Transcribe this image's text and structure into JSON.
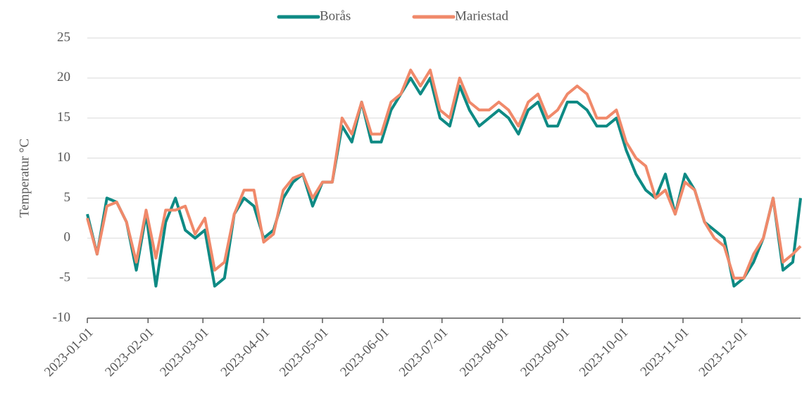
{
  "chart_data": {
    "type": "line",
    "y_label": "Temperatur °C",
    "x": [
      "2023-01-01",
      "2023-01-06",
      "2023-01-11",
      "2023-01-16",
      "2023-01-21",
      "2023-01-26",
      "2023-01-31",
      "2023-02-05",
      "2023-02-10",
      "2023-02-15",
      "2023-02-20",
      "2023-02-25",
      "2023-03-02",
      "2023-03-07",
      "2023-03-12",
      "2023-03-17",
      "2023-03-22",
      "2023-03-27",
      "2023-04-01",
      "2023-04-06",
      "2023-04-11",
      "2023-04-16",
      "2023-04-21",
      "2023-04-26",
      "2023-05-01",
      "2023-05-06",
      "2023-05-11",
      "2023-05-16",
      "2023-05-21",
      "2023-05-26",
      "2023-05-31",
      "2023-06-05",
      "2023-06-10",
      "2023-06-15",
      "2023-06-20",
      "2023-06-25",
      "2023-06-30",
      "2023-07-05",
      "2023-07-10",
      "2023-07-15",
      "2023-07-20",
      "2023-07-25",
      "2023-07-30",
      "2023-08-04",
      "2023-08-09",
      "2023-08-14",
      "2023-08-19",
      "2023-08-24",
      "2023-08-29",
      "2023-09-03",
      "2023-09-08",
      "2023-09-13",
      "2023-09-18",
      "2023-09-23",
      "2023-09-28",
      "2023-10-03",
      "2023-10-08",
      "2023-10-13",
      "2023-10-18",
      "2023-10-23",
      "2023-10-28",
      "2023-11-02",
      "2023-11-07",
      "2023-11-12",
      "2023-11-17",
      "2023-11-22",
      "2023-11-27",
      "2023-12-02",
      "2023-12-07",
      "2023-12-12",
      "2023-12-17",
      "2023-12-22",
      "2023-12-27",
      "2023-12-31"
    ],
    "series": [
      {
        "name": "Borås",
        "color": "#0e8a84",
        "values": [
          3,
          -2,
          5,
          4.5,
          2,
          -4,
          3,
          -6,
          2,
          5,
          1,
          0,
          1,
          -6,
          -5,
          3,
          5,
          4,
          0,
          1,
          5,
          7,
          8,
          4,
          7,
          7,
          14,
          12,
          17,
          12,
          12,
          16,
          18,
          20,
          18,
          20,
          15,
          14,
          19,
          16,
          14,
          15,
          16,
          15,
          13,
          16,
          17,
          14,
          14,
          17,
          17,
          16,
          14,
          14,
          15,
          11,
          8,
          6,
          5,
          8,
          3,
          8,
          6,
          2,
          1,
          0,
          -6,
          -5,
          -3,
          0,
          5,
          -4,
          -3,
          5
        ]
      },
      {
        "name": "Mariestad",
        "color": "#f0896a",
        "values": [
          2.5,
          -2,
          4,
          4.5,
          2,
          -3,
          3.5,
          -2.5,
          3.5,
          3.5,
          4,
          0.5,
          2.5,
          -4,
          -3,
          3,
          6,
          6,
          -0.5,
          0.5,
          6,
          7.5,
          8,
          5,
          7,
          7,
          15,
          13,
          17,
          13,
          13,
          17,
          18,
          21,
          19,
          21,
          16,
          15,
          20,
          17,
          16,
          16,
          17,
          16,
          14,
          17,
          18,
          15,
          16,
          18,
          19,
          18,
          15,
          15,
          16,
          12,
          10,
          9,
          5,
          6,
          3,
          7,
          6,
          2,
          0,
          -1,
          -5,
          -5,
          -2,
          0,
          5,
          -3,
          -2,
          -1
        ]
      }
    ],
    "xlim": [
      "2023-01-01",
      "2023-12-31"
    ],
    "xticks": [
      "2023-01-01",
      "2023-02-01",
      "2023-03-01",
      "2023-04-01",
      "2023-05-01",
      "2023-06-01",
      "2023-07-01",
      "2023-08-01",
      "2023-09-01",
      "2023-10-01",
      "2023-11-01",
      "2023-12-01"
    ],
    "ylim": [
      -10,
      25
    ],
    "yticks": [
      -10,
      -5,
      0,
      5,
      10,
      15,
      20,
      25
    ],
    "grid": true,
    "legend": "top"
  }
}
